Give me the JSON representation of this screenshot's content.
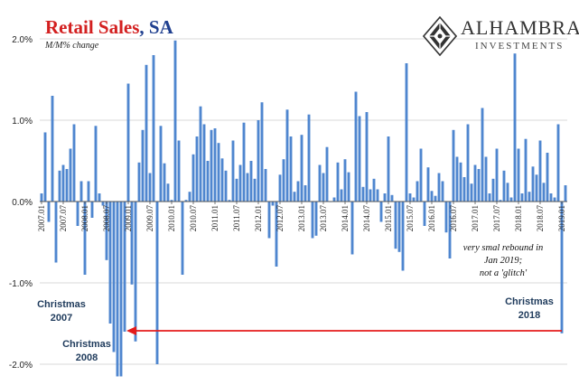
{
  "header": {
    "title_red": "Retail Sales",
    "title_blue": ", SA",
    "subtitle": "M/M% change"
  },
  "logo": {
    "name": "ALHAMBRA",
    "sub": "INVESTMENTS"
  },
  "annotations": {
    "christmas_2007": [
      "Christmas",
      "2007"
    ],
    "christmas_2008": [
      "Christmas",
      "2008"
    ],
    "christmas_2018": [
      "Christmas",
      "2018"
    ],
    "note": [
      "very smal rebound in",
      "Jan 2019;",
      "not a 'glitch'"
    ]
  },
  "colors": {
    "bar": "#4f86cf",
    "arrow": "#e41b1b",
    "title_red": "#d32020",
    "title_blue": "#1f3f8f"
  },
  "chart_data": {
    "type": "bar",
    "title": "Retail Sales, SA",
    "ylabel": "M/M% change",
    "ylim": [
      -2.0,
      2.0
    ],
    "y_ticks": [
      2.0,
      1.0,
      0.0,
      -1.0,
      -2.0
    ],
    "y_tick_labels": [
      "2.0%",
      "1.0%",
      "0.0%",
      "-1.0%",
      "-2.0%"
    ],
    "grid": true,
    "x_start": "2007-01",
    "x_tick_labels": [
      "2007.01",
      "2007.07",
      "2008.01",
      "2008.07",
      "2009.01",
      "2009.07",
      "2010.01",
      "2010.07",
      "2011.01",
      "2011.07",
      "2012.01",
      "2012.07",
      "2013.01",
      "2013.07",
      "2014.01",
      "2014.07",
      "2015.01",
      "2015.07",
      "2016.01",
      "2016.07",
      "2017.01",
      "2017.07",
      "2018.01",
      "2018.07",
      "2019.01"
    ],
    "values": [
      0.1,
      0.85,
      -0.25,
      1.3,
      -0.75,
      0.38,
      0.45,
      0.4,
      0.65,
      0.95,
      -0.3,
      0.25,
      -0.9,
      0.25,
      -0.2,
      0.93,
      0.1,
      -0.05,
      -0.72,
      -1.5,
      -1.85,
      -2.2,
      -2.5,
      -1.6,
      1.45,
      -1.02,
      -1.72,
      0.48,
      0.88,
      1.68,
      0.35,
      1.8,
      -2.0,
      0.93,
      0.47,
      0.22,
      0.02,
      1.98,
      0.75,
      -0.9,
      0.02,
      0.12,
      0.58,
      0.8,
      1.17,
      0.95,
      0.5,
      0.88,
      0.9,
      0.72,
      0.53,
      0.38,
      0.02,
      0.75,
      0.28,
      0.45,
      0.97,
      0.35,
      0.5,
      0.28,
      1.0,
      1.22,
      0.4,
      -0.45,
      -0.05,
      -0.8,
      0.33,
      0.52,
      1.13,
      0.8,
      0.12,
      0.25,
      0.82,
      0.2,
      1.07,
      -0.45,
      -0.42,
      0.45,
      0.35,
      0.67,
      0.0,
      0.05,
      0.48,
      0.15,
      0.52,
      0.36,
      -0.65,
      1.35,
      1.05,
      0.18,
      1.1,
      0.15,
      0.28,
      0.15,
      -0.25,
      0.1,
      0.8,
      0.08,
      -0.58,
      -0.62,
      -0.85,
      1.7,
      0.1,
      0.05,
      0.25,
      0.65,
      -0.3,
      0.42,
      0.13,
      0.07,
      0.35,
      0.25,
      -0.38,
      -0.7,
      0.88,
      0.55,
      0.48,
      0.3,
      0.95,
      0.22,
      0.45,
      0.4,
      1.15,
      0.55,
      0.1,
      0.28,
      0.65,
      0.02,
      0.38,
      0.23,
      0.05,
      1.82,
      0.65,
      0.1,
      0.77,
      0.12,
      0.43,
      0.33,
      0.75,
      0.23,
      0.6,
      0.1,
      0.05,
      0.95,
      -1.62,
      0.2
    ]
  }
}
